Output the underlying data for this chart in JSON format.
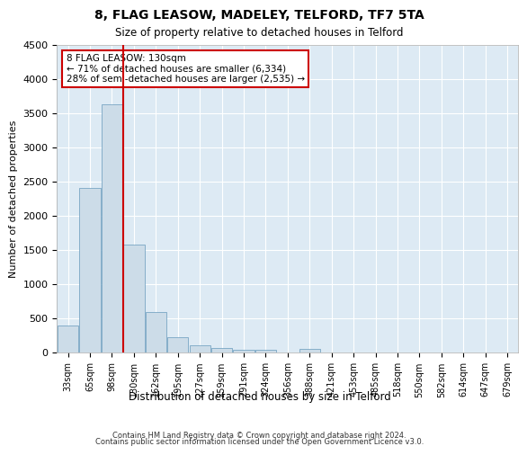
{
  "title": "8, FLAG LEASOW, MADELEY, TELFORD, TF7 5TA",
  "subtitle": "Size of property relative to detached houses in Telford",
  "xlabel": "Distribution of detached houses by size in Telford",
  "ylabel": "Number of detached properties",
  "bar_color": "#ccdce8",
  "bar_edge_color": "#6699bb",
  "highlight_line_color": "#cc0000",
  "categories": [
    "33sqm",
    "65sqm",
    "98sqm",
    "130sqm",
    "162sqm",
    "195sqm",
    "227sqm",
    "259sqm",
    "291sqm",
    "324sqm",
    "356sqm",
    "388sqm",
    "421sqm",
    "453sqm",
    "485sqm",
    "518sqm",
    "550sqm",
    "582sqm",
    "614sqm",
    "647sqm",
    "679sqm"
  ],
  "values": [
    390,
    2400,
    3620,
    1580,
    590,
    220,
    105,
    60,
    45,
    35,
    0,
    55,
    0,
    0,
    0,
    0,
    0,
    0,
    0,
    0,
    0
  ],
  "ylim": [
    0,
    4500
  ],
  "yticks": [
    0,
    500,
    1000,
    1500,
    2000,
    2500,
    3000,
    3500,
    4000,
    4500
  ],
  "annotation_title": "8 FLAG LEASOW: 130sqm",
  "annotation_line1": "← 71% of detached houses are smaller (6,334)",
  "annotation_line2": "28% of semi-detached houses are larger (2,535) →",
  "annotation_box_color": "#ffffff",
  "annotation_box_edge": "#cc0000",
  "footer_line1": "Contains HM Land Registry data © Crown copyright and database right 2024.",
  "footer_line2": "Contains public sector information licensed under the Open Government Licence v3.0.",
  "bg_color": "#ddeaf4",
  "grid_color": "#ffffff",
  "highlight_bar_index": 3
}
